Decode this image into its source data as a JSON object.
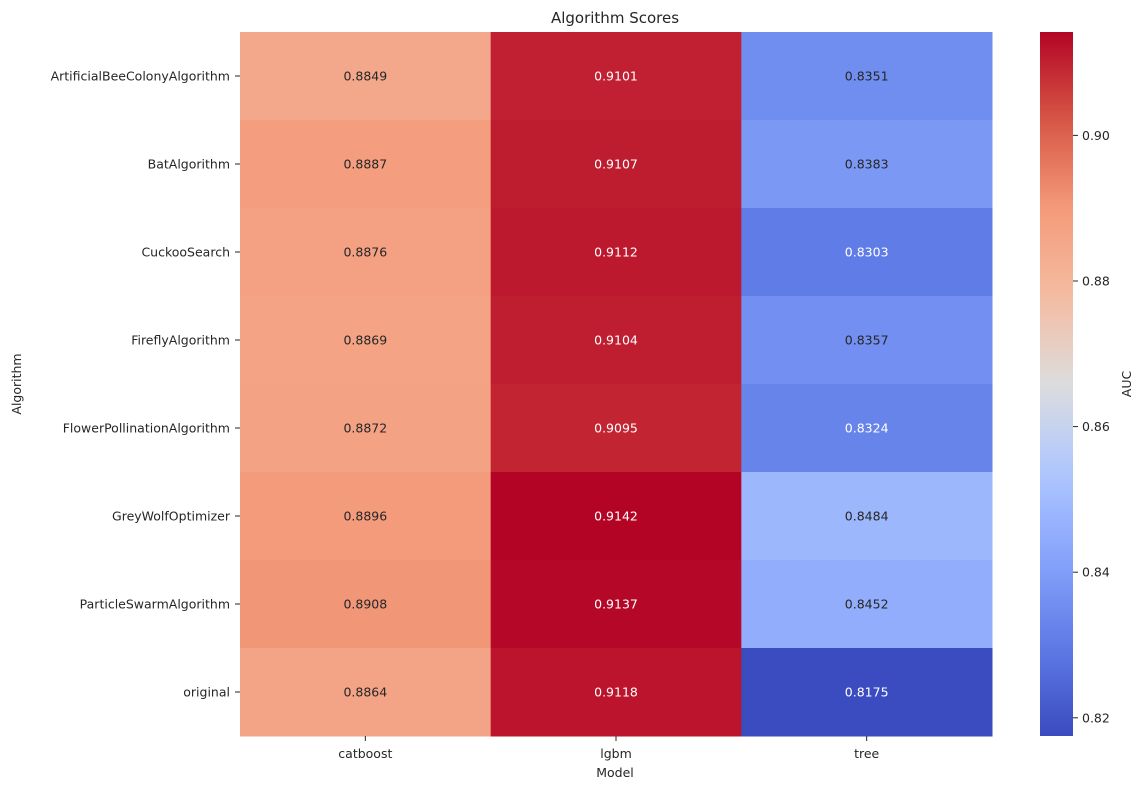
{
  "chart_data": {
    "type": "heatmap",
    "title": "Algorithm Scores",
    "xlabel": "Model",
    "ylabel": "Algorithm",
    "columns": [
      "catboost",
      "lgbm",
      "tree"
    ],
    "rows": [
      "ArtificialBeeColonyAlgorithm",
      "BatAlgorithm",
      "CuckooSearch",
      "FireflyAlgorithm",
      "FlowerPollinationAlgorithm",
      "GreyWolfOptimizer",
      "ParticleSwarmAlgorithm",
      "original"
    ],
    "values": [
      [
        0.8849,
        0.9101,
        0.8351
      ],
      [
        0.8887,
        0.9107,
        0.8383
      ],
      [
        0.8876,
        0.9112,
        0.8303
      ],
      [
        0.8869,
        0.9104,
        0.8357
      ],
      [
        0.8872,
        0.9095,
        0.8324
      ],
      [
        0.8896,
        0.9142,
        0.8484
      ],
      [
        0.8908,
        0.9137,
        0.8452
      ],
      [
        0.8864,
        0.9118,
        0.8175
      ]
    ],
    "colorbar": {
      "label": "AUC",
      "colormap": "coolwarm",
      "vmin": 0.8175,
      "vmax": 0.9142,
      "ticks": [
        0.82,
        0.84,
        0.86,
        0.88,
        0.9
      ],
      "tick_labels": [
        "0.82",
        "0.84",
        "0.86",
        "0.88",
        "0.90"
      ]
    },
    "annotation_format": "4 decimals"
  }
}
